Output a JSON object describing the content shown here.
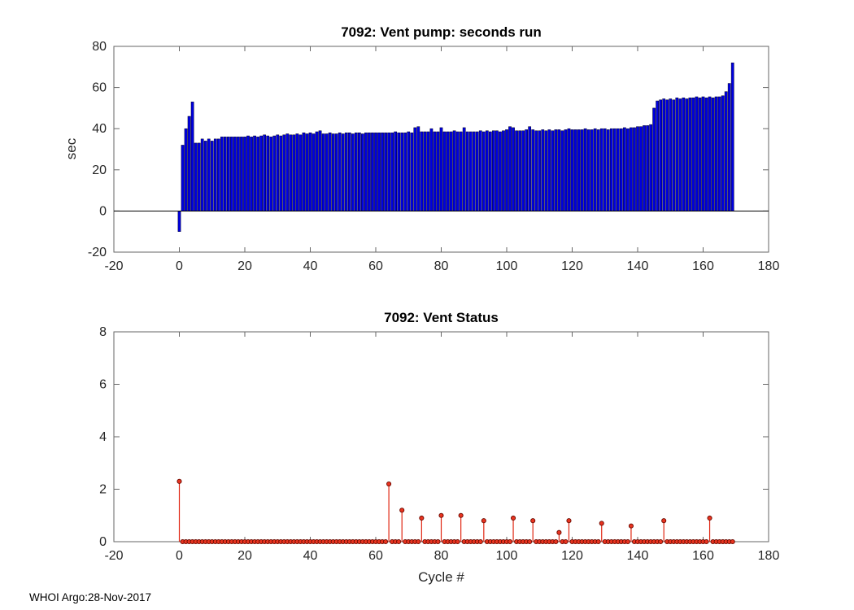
{
  "footer": {
    "text": "WHOI Argo:28-Nov-2017"
  },
  "chart_data": [
    {
      "type": "bar",
      "title": "7092: Vent pump: seconds run",
      "xlabel": "",
      "ylabel": "sec",
      "xlim": [
        -20,
        180
      ],
      "ylim": [
        -20,
        80
      ],
      "xticks": [
        -20,
        0,
        20,
        40,
        60,
        80,
        100,
        120,
        140,
        160,
        180
      ],
      "yticks": [
        -20,
        0,
        20,
        40,
        60,
        80
      ],
      "bar_color": "#0000e0",
      "bar_edge": "#000028",
      "baseline_color": "#000000",
      "x_start": 0,
      "values": [
        -10,
        32,
        40,
        46,
        53,
        33,
        33,
        35,
        34,
        35,
        34,
        35,
        35,
        36,
        36,
        36,
        36,
        36,
        36,
        36,
        36,
        36.5,
        36,
        36.5,
        36,
        36.5,
        37,
        36.5,
        36,
        36.5,
        37,
        36.5,
        37,
        37.5,
        37,
        37,
        37.5,
        37,
        38,
        37.5,
        38,
        37.5,
        38.5,
        39,
        37.5,
        37.5,
        38,
        37.5,
        37.5,
        38,
        37.5,
        38,
        38,
        37.5,
        38,
        38,
        37.5,
        38,
        38,
        38,
        38,
        38,
        38,
        38,
        38,
        38,
        38.5,
        38,
        38,
        38,
        38.5,
        38,
        40.5,
        41,
        38.5,
        38.5,
        38.5,
        40,
        38.5,
        38.5,
        40.5,
        38.5,
        38.5,
        38.5,
        39,
        38.5,
        38.5,
        40.5,
        38.5,
        38.5,
        38.5,
        38.5,
        39,
        38.5,
        39,
        38.5,
        39,
        39,
        38.5,
        39,
        39.5,
        41,
        40.5,
        39,
        39,
        39,
        39.5,
        41,
        39.5,
        39,
        39,
        39.5,
        39,
        39.5,
        39,
        39.5,
        39.5,
        39,
        39.5,
        40,
        39.5,
        39.5,
        39.5,
        39.5,
        40,
        39.5,
        39.5,
        40,
        39.5,
        40,
        40,
        39.5,
        40,
        40,
        40,
        40,
        40.5,
        40,
        40.5,
        40.5,
        41,
        41,
        41.5,
        41.5,
        42,
        50,
        53.5,
        54,
        54.5,
        54,
        54.5,
        54,
        55,
        54.5,
        55,
        54.5,
        55,
        55,
        55.5,
        55,
        55.5,
        55,
        55.5,
        55,
        55.5,
        55.5,
        56,
        58,
        62,
        72
      ]
    },
    {
      "type": "stem",
      "title": "7092: Vent Status",
      "xlabel": "Cycle #",
      "ylabel": "",
      "xlim": [
        -20,
        180
      ],
      "ylim": [
        0,
        8
      ],
      "xticks": [
        -20,
        0,
        20,
        40,
        60,
        80,
        100,
        120,
        140,
        160,
        180
      ],
      "yticks": [
        0,
        2,
        4,
        6,
        8
      ],
      "stem_color": "#e02612",
      "marker_fill": "#e8331f",
      "marker_edge": "#6b0a00",
      "x_start": 0,
      "values": [
        2.3,
        0,
        0,
        0,
        0,
        0,
        0,
        0,
        0,
        0,
        0,
        0,
        0,
        0,
        0,
        0,
        0,
        0,
        0,
        0,
        0,
        0,
        0,
        0,
        0,
        0,
        0,
        0,
        0,
        0,
        0,
        0,
        0,
        0,
        0,
        0,
        0,
        0,
        0,
        0,
        0,
        0,
        0,
        0,
        0,
        0,
        0,
        0,
        0,
        0,
        0,
        0,
        0,
        0,
        0,
        0,
        0,
        0,
        0,
        0,
        0,
        0,
        0,
        0,
        2.2,
        0,
        0,
        0,
        1.2,
        0,
        0,
        0,
        0,
        0,
        0.9,
        0,
        0,
        0,
        0,
        0,
        1.0,
        0,
        0,
        0,
        0,
        0,
        1.0,
        0,
        0,
        0,
        0,
        0,
        0,
        0.8,
        0,
        0,
        0,
        0,
        0,
        0,
        0,
        0,
        0.9,
        0,
        0,
        0,
        0,
        0,
        0.8,
        0,
        0,
        0,
        0,
        0,
        0,
        0,
        0.35,
        0,
        0,
        0.8,
        0,
        0,
        0,
        0,
        0,
        0,
        0,
        0,
        0,
        0.7,
        0,
        0,
        0,
        0,
        0,
        0,
        0,
        0,
        0.6,
        0,
        0,
        0,
        0,
        0,
        0,
        0,
        0,
        0,
        0.8,
        0,
        0,
        0,
        0,
        0,
        0,
        0,
        0,
        0,
        0,
        0,
        0,
        0,
        0.9,
        0,
        0,
        0,
        0,
        0,
        0,
        0
      ]
    }
  ]
}
